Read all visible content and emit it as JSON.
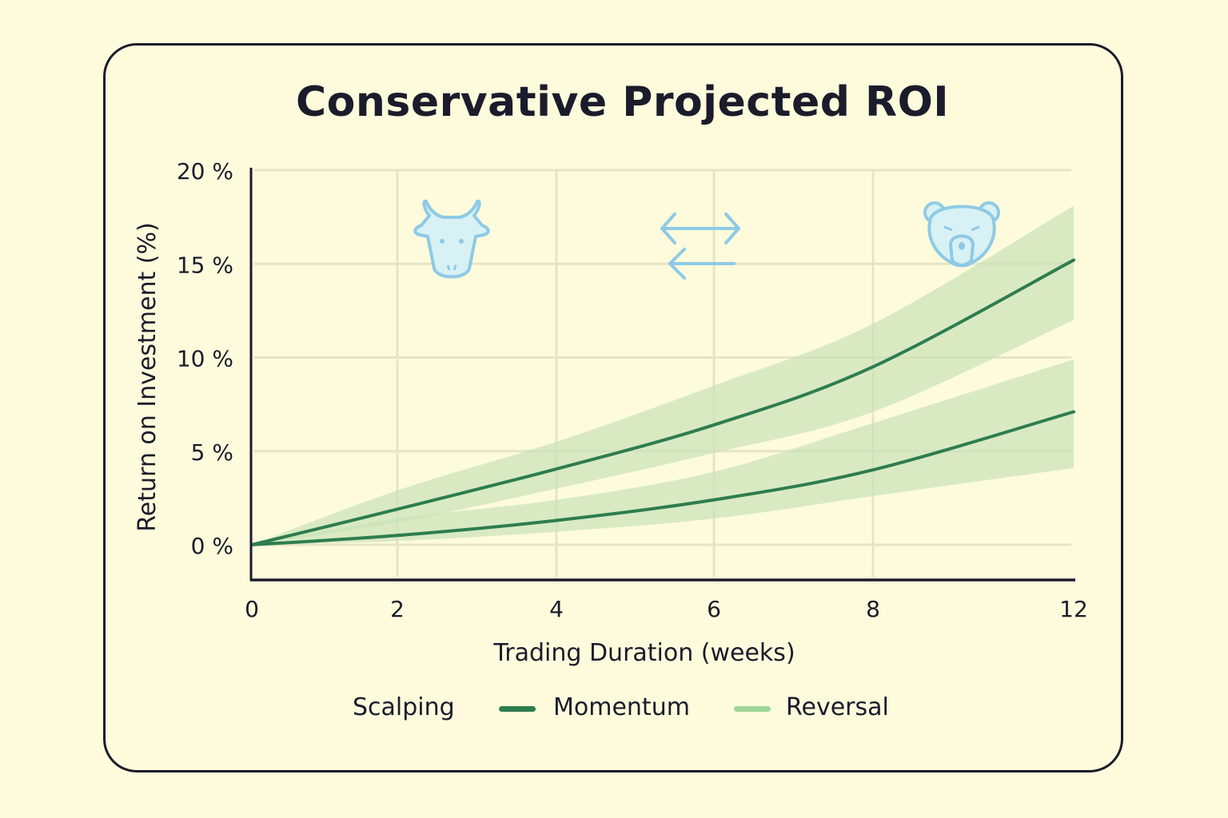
{
  "chart_data": {
    "type": "line",
    "title": "Conservative Projected ROI",
    "xlabel": "Trading Duration (weeks)",
    "ylabel": "Return on Investment (%)",
    "x_ticks": [
      "0",
      "2",
      "4",
      "6",
      "8",
      "12"
    ],
    "x_tick_values": [
      0,
      2,
      4,
      6,
      8,
      12
    ],
    "y_ticks": [
      "0 %",
      "5 %",
      "10 %",
      "15 %",
      "20 %"
    ],
    "y_tick_values": [
      0,
      5,
      10,
      15,
      20
    ],
    "ylim": [
      -1.8,
      20
    ],
    "grid": true,
    "x": [
      0,
      2,
      4,
      6,
      8,
      12
    ],
    "series": [
      {
        "color": "#2e7d4f",
        "values": [
          0,
          1.9,
          4.05,
          6.4,
          9.5,
          15.2
        ],
        "band_upper": [
          0,
          2.9,
          5.5,
          8.5,
          11.8,
          18.1
        ],
        "band_lower": [
          0,
          1.2,
          3.0,
          4.9,
          7.1,
          12.0
        ]
      },
      {
        "color": "#2e7d4f",
        "values": [
          0,
          0.5,
          1.3,
          2.4,
          4.0,
          7.1
        ],
        "band_upper": [
          0,
          1.4,
          2.4,
          3.9,
          6.5,
          9.9
        ],
        "band_lower": [
          0,
          0.2,
          0.7,
          1.4,
          2.6,
          4.1
        ]
      }
    ],
    "band_color": "#c9e3b8",
    "legend": {
      "placement": "bottom",
      "entries": [
        {
          "label": "Scalping",
          "color": ""
        },
        {
          "label": "Momentum",
          "color": "#2e7d4f"
        },
        {
          "label": "Reversal",
          "color": "#9fd69a"
        }
      ]
    },
    "icons": [
      "bull-icon",
      "exchange-arrows-icon",
      "bear-icon"
    ],
    "icon_color": "#8ecae6"
  }
}
